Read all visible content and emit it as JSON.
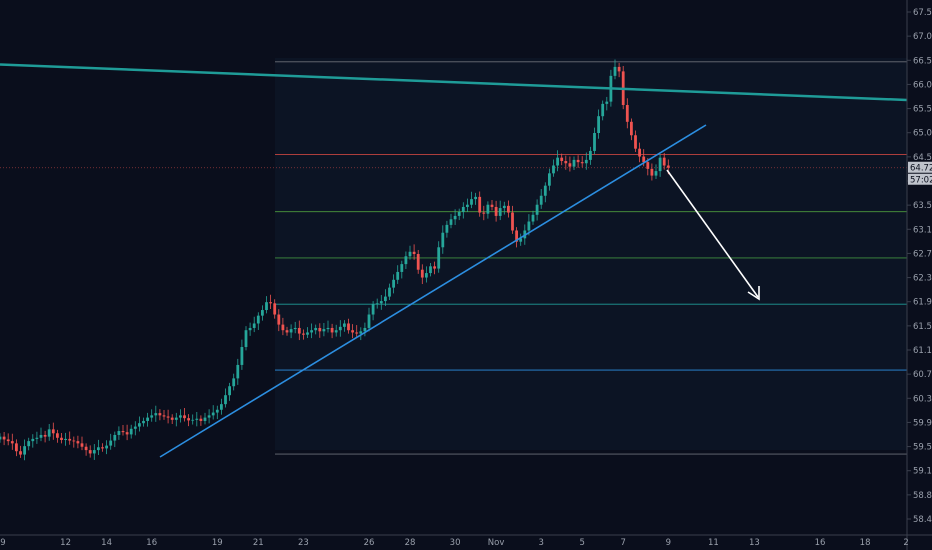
{
  "chart_data": {
    "type": "candlestick",
    "title": "",
    "xlabel": "",
    "ylabel": "",
    "ylim": [
      58.1,
      67.85
    ],
    "y_ticks": [
      "67.50",
      "67.00",
      "66.50",
      "66.00",
      "65.50",
      "65.00",
      "64.50",
      "64.00",
      "63.50",
      "63.10",
      "62.70",
      "62.30",
      "61.90",
      "61.50",
      "61.10",
      "60.70",
      "60.30",
      "59.90",
      "59.50",
      "59.15",
      "58.80",
      "58.45"
    ],
    "x_ticks": [
      {
        "label": "9",
        "i": 0
      },
      {
        "label": "12",
        "i": 16
      },
      {
        "label": "14",
        "i": 26
      },
      {
        "label": "16",
        "i": 37
      },
      {
        "label": "19",
        "i": 53
      },
      {
        "label": "21",
        "i": 63
      },
      {
        "label": "23",
        "i": 74
      },
      {
        "label": "26",
        "i": 90
      },
      {
        "label": "28",
        "i": 100
      },
      {
        "label": "30",
        "i": 111
      },
      {
        "label": "Nov",
        "i": 121
      },
      {
        "label": "3",
        "i": 132
      },
      {
        "label": "5",
        "i": 142
      },
      {
        "label": "7",
        "i": 152
      },
      {
        "label": "9",
        "i": 163
      },
      {
        "label": "11",
        "i": 174
      },
      {
        "label": "13",
        "i": 184
      },
      {
        "label": "16",
        "i": 200
      },
      {
        "label": "18",
        "i": 211
      },
      {
        "label": "2",
        "i": 221
      }
    ],
    "last_price": {
      "value": "64.72",
      "countdown": "57:02"
    },
    "grid": false,
    "up_color": "#26a69a",
    "down_color": "#ef5350",
    "closes": [
      59.92,
      59.87,
      59.84,
      59.8,
      59.66,
      59.6,
      59.75,
      59.84,
      59.88,
      59.9,
      59.95,
      59.92,
      60.05,
      59.98,
      59.9,
      59.86,
      59.88,
      59.85,
      59.84,
      59.8,
      59.74,
      59.68,
      59.62,
      59.68,
      59.73,
      59.71,
      59.76,
      59.85,
      59.95,
      60.02,
      60.0,
      59.96,
      60.06,
      60.1,
      60.16,
      60.2,
      60.26,
      60.3,
      60.34,
      60.3,
      60.28,
      60.26,
      60.22,
      60.26,
      60.3,
      60.25,
      60.21,
      60.22,
      60.24,
      60.2,
      60.26,
      60.3,
      60.35,
      60.4,
      60.5,
      60.66,
      60.82,
      60.96,
      61.2,
      61.52,
      61.82,
      61.86,
      61.94,
      62.08,
      62.18,
      62.32,
      62.3,
      62.1,
      61.92,
      61.82,
      61.78,
      61.84,
      61.86,
      61.76,
      61.74,
      61.78,
      61.82,
      61.86,
      61.8,
      61.84,
      61.86,
      61.78,
      61.82,
      61.88,
      61.94,
      61.82,
      61.78,
      61.76,
      61.8,
      61.86,
      62.1,
      62.28,
      62.3,
      62.34,
      62.42,
      62.58,
      62.72,
      62.86,
      63.0,
      63.14,
      63.22,
      63.18,
      62.9,
      62.76,
      62.84,
      62.96,
      62.92,
      63.3,
      63.56,
      63.7,
      63.8,
      63.86,
      63.93,
      64.02,
      64.06,
      64.16,
      64.2,
      63.92,
      63.9,
      64.06,
      64.02,
      63.86,
      64.0,
      64.04,
      63.92,
      63.6,
      63.4,
      63.46,
      63.6,
      63.76,
      63.88,
      64.06,
      64.22,
      64.4,
      64.62,
      64.76,
      64.9,
      64.84,
      64.8,
      64.74,
      64.86,
      64.82,
      64.8,
      64.86,
      65.02,
      65.34,
      65.64,
      65.86,
      65.9,
      66.36,
      66.52,
      66.44,
      65.84,
      65.54,
      65.3,
      65.06,
      64.92,
      64.82,
      64.7,
      64.58,
      64.66,
      64.9,
      64.76,
      64.72
    ]
  }
}
